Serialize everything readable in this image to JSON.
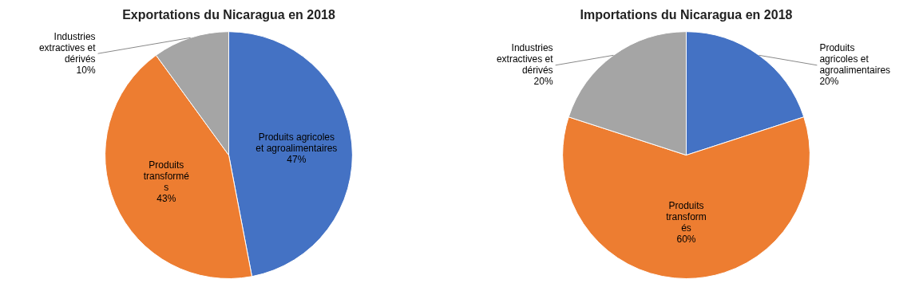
{
  "chart_data": [
    {
      "type": "pie",
      "title": "Exportations du Nicaragua en 2018",
      "values": [
        47,
        43,
        10
      ],
      "value_labels": [
        "Produits agricoles\net agroalimentaires\n47%",
        "Produits\ntransformé\ns\n43%",
        "Industries\nextractives et\ndérivés\n10%"
      ],
      "colors": [
        "#4472C4",
        "#ED7D31",
        "#A5A5A5"
      ],
      "data_labels": true
    },
    {
      "type": "pie",
      "title": "Importations du Nicaragua en 2018",
      "values": [
        20,
        60,
        20
      ],
      "value_labels": [
        "Produits\nagricoles et\nagroalimentaires\n20%",
        "Produits\ntransform\nés\n60%",
        "Industries\nextractives et\ndérivés\n20%"
      ],
      "colors": [
        "#4472C4",
        "#ED7D31",
        "#A5A5A5"
      ],
      "data_labels": true
    }
  ]
}
